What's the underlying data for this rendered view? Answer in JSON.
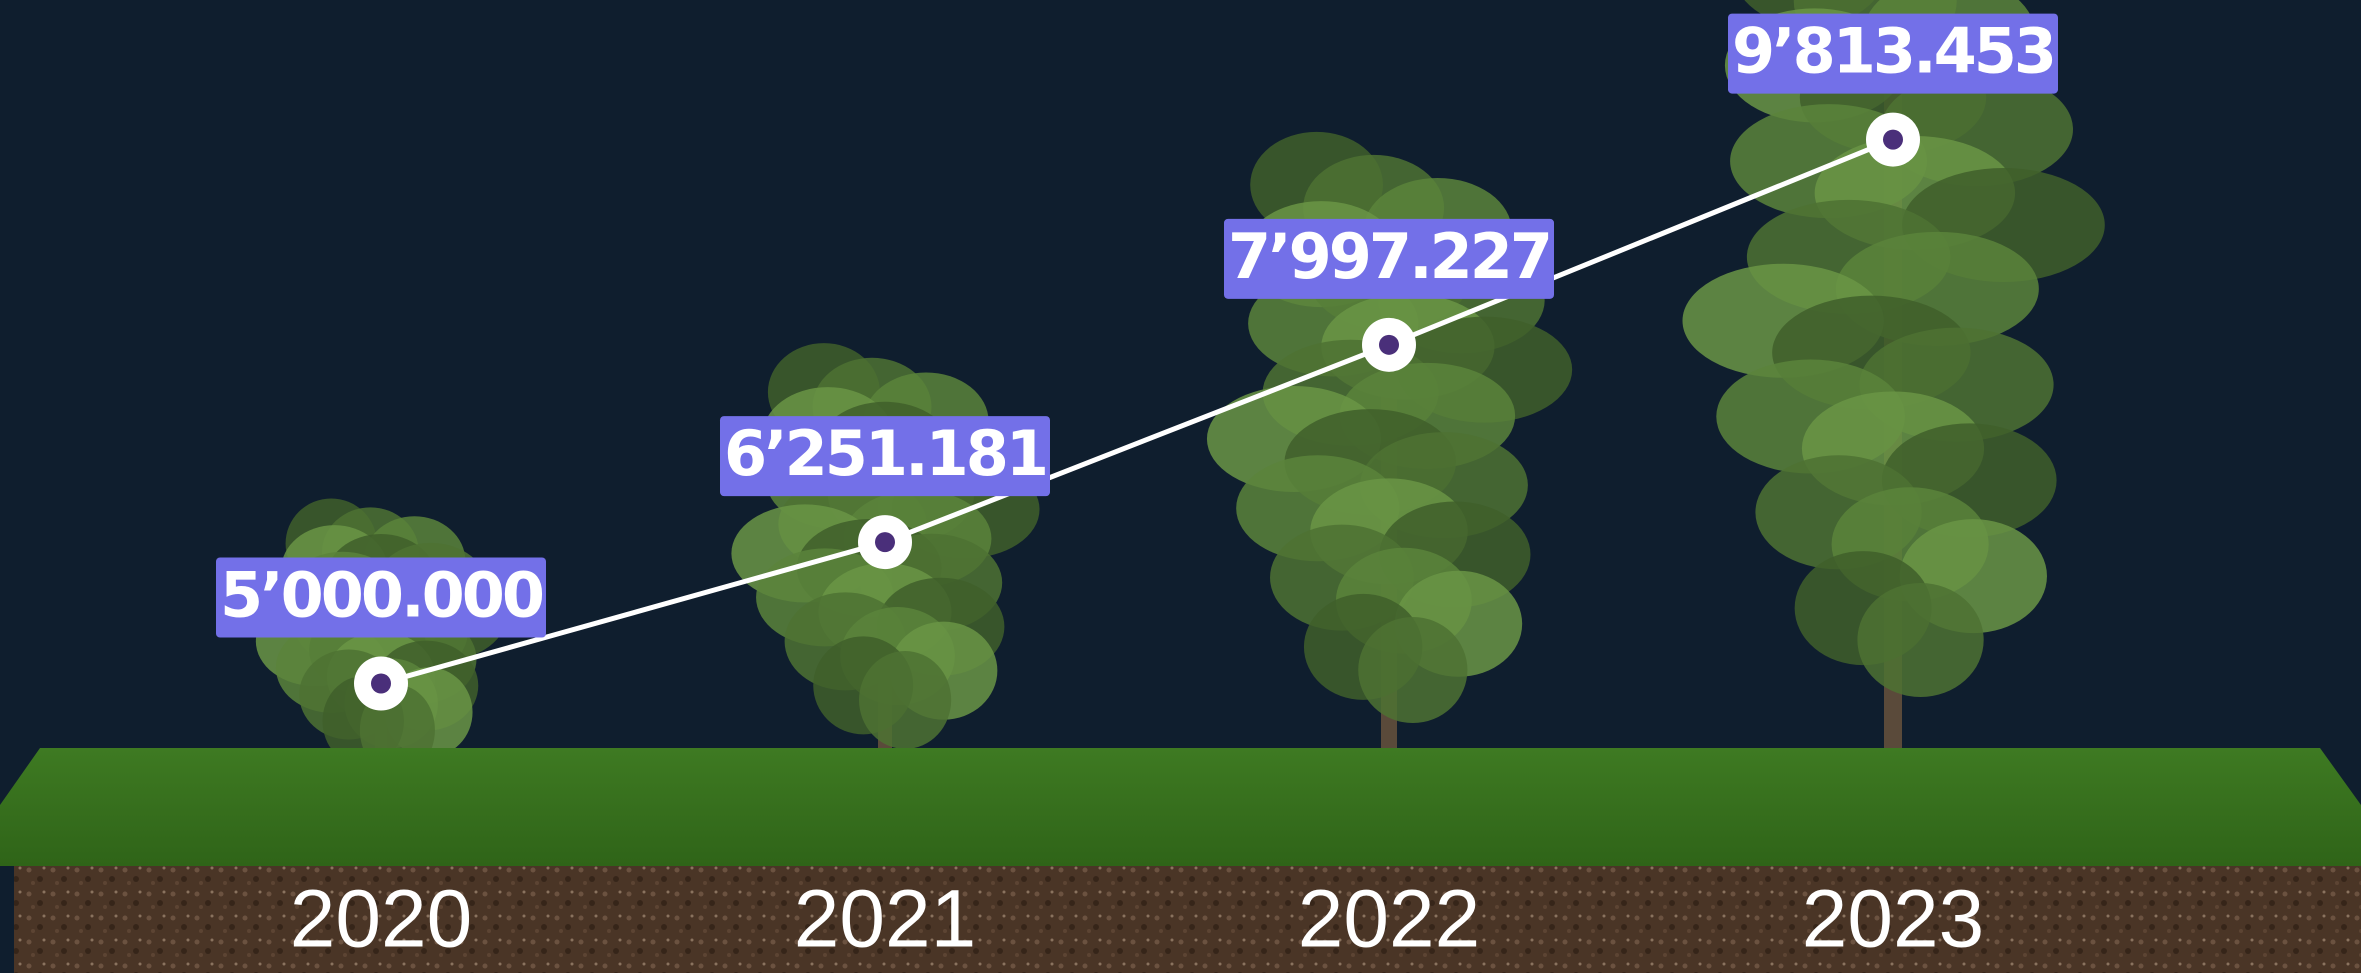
{
  "chart_data": {
    "type": "line",
    "categories": [
      "2020",
      "2021",
      "2022",
      "2023"
    ],
    "values": [
      5000000,
      6251181,
      7997227,
      9813453
    ],
    "value_labels": [
      "5’000.000",
      "6’251.181",
      "7’997.227",
      "9’813.453"
    ],
    "ylim": [
      2500000,
      10500000
    ],
    "color": "#ffffff",
    "label_color": "#7370e8",
    "marker_color": "#4a2f7a"
  }
}
